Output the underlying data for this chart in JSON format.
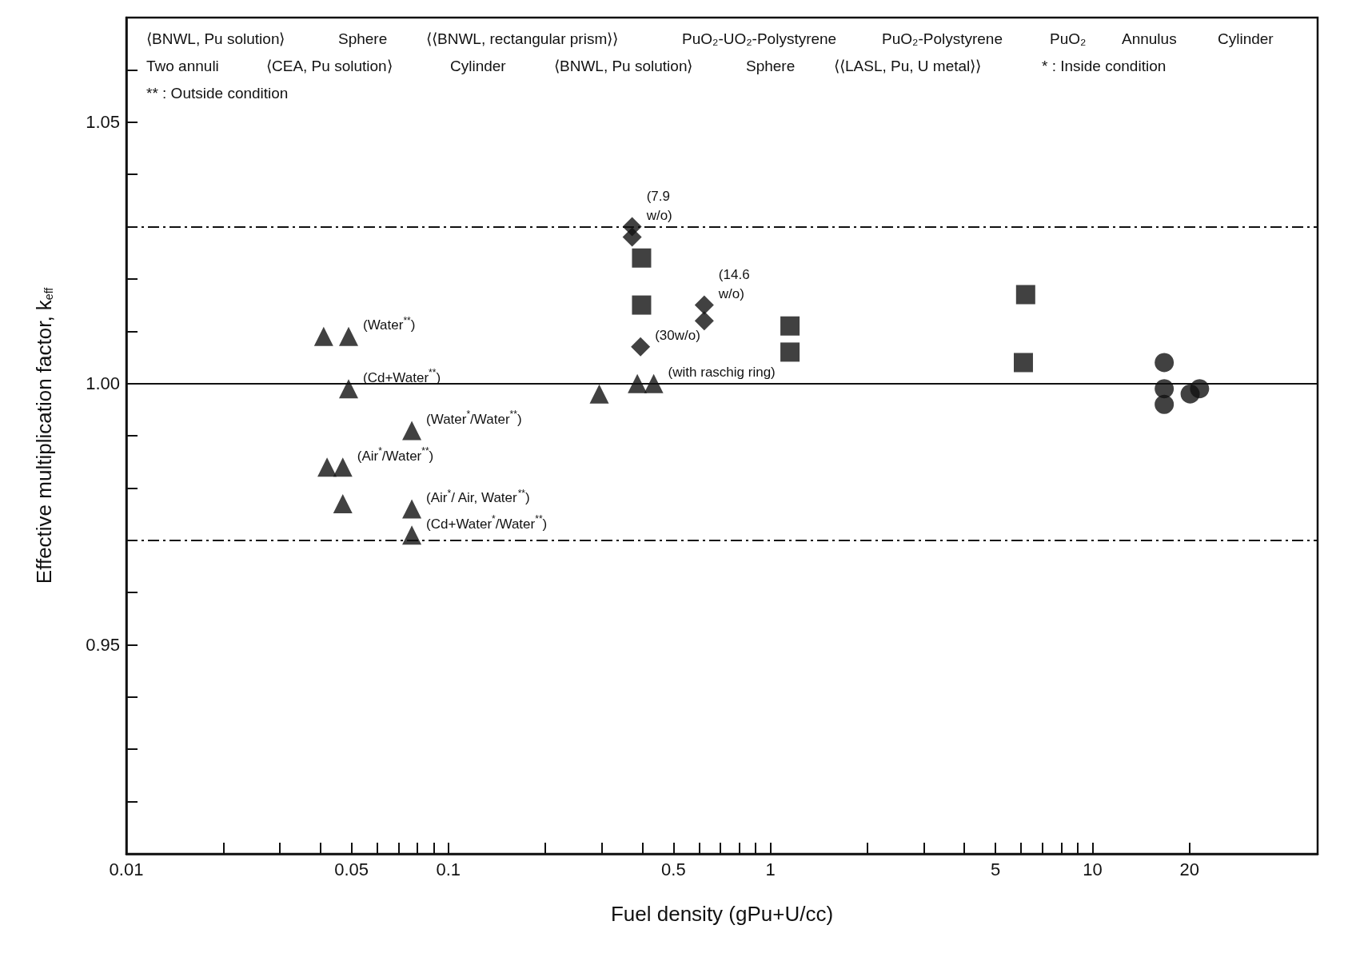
{
  "chart_data": {
    "type": "scatter",
    "xlabel": "Fuel density (gPu+U/cc)",
    "ylabel": "Effective multiplication factor, k$_{eff}$",
    "log": "x",
    "xlim": [
      0.01,
      50
    ],
    "xticks": [
      0.01,
      {
        "value": 0.02,
        "label": null
      },
      {
        "value": 0.03,
        "label": null
      },
      {
        "value": 0.04,
        "label": null
      },
      0.05,
      {
        "value": 0.06,
        "label": null
      },
      {
        "value": 0.07,
        "label": null
      },
      {
        "value": 0.08,
        "label": null
      },
      {
        "value": 0.09,
        "label": null
      },
      0.1,
      {
        "value": 0.2,
        "label": null
      },
      {
        "value": 0.3,
        "label": null
      },
      {
        "value": 0.4,
        "label": null
      },
      0.5,
      {
        "value": 0.6,
        "label": null
      },
      {
        "value": 0.7,
        "label": null
      },
      {
        "value": 0.8,
        "label": null
      },
      {
        "value": 0.9,
        "label": null
      },
      1,
      {
        "value": 2,
        "label": null
      },
      {
        "value": 3,
        "label": null
      },
      {
        "value": 4,
        "label": null
      },
      5,
      {
        "value": 6,
        "label": null
      },
      {
        "value": 7,
        "label": null
      },
      {
        "value": 8,
        "label": null
      },
      {
        "value": 9,
        "label": null
      },
      10,
      20
    ],
    "ylim": [
      0.91,
      1.07
    ],
    "yticks": [
      {
        "value": 0.92,
        "label": null
      },
      {
        "value": 0.93,
        "label": null
      },
      {
        "value": 0.94,
        "label": null
      },
      0.95,
      {
        "value": 0.96,
        "label": null
      },
      {
        "value": 0.97,
        "label": null
      },
      {
        "value": 0.98,
        "label": null
      },
      {
        "value": 0.99,
        "label": null
      },
      {
        "value": 1,
        "label": "1.00"
      },
      {
        "value": 1.01,
        "label": null
      },
      {
        "value": 1.02,
        "label": null
      },
      {
        "value": 1.03,
        "label": null
      },
      {
        "value": 1.04,
        "label": null
      },
      1.05,
      {
        "value": 1.06,
        "label": null
      }
    ],
    "grid": false,
    "series": [
      {
        "color": "#111111",
        "marker": "triangle",
        "x": [
          0.041,
          0.049,
          0.049,
          0.042,
          0.047,
          0.047,
          0.077,
          0.077,
          0.077,
          0.294,
          0.386,
          0.434
        ],
        "values": [
          1.009,
          1.009,
          0.999,
          0.984,
          0.984,
          0.977,
          0.991,
          0.976,
          0.971,
          0.998,
          1.0,
          1.0
        ]
      },
      {
        "color": "#111111",
        "marker": "diamond",
        "x": [
          0.372,
          0.372,
          0.395,
          0.623,
          0.623
        ],
        "values": [
          1.03,
          1.028,
          1.007,
          1.015,
          1.012
        ]
      },
      {
        "color": "#111111",
        "marker": "square",
        "x": [
          0.398,
          0.398,
          1.15,
          1.15,
          6.2,
          6.1
        ],
        "values": [
          1.024,
          1.015,
          1.011,
          1.006,
          1.017,
          1.004
        ]
      },
      {
        "color": "#111111",
        "marker": "circle",
        "x": [
          16.7,
          16.7,
          16.7,
          20.1,
          21.5
        ],
        "values": [
          1.004,
          0.999,
          0.996,
          0.998,
          0.999
        ]
      }
    ],
    "ref_lines": [
      {
        "axis": "y",
        "value": 1.03,
        "line_style": "dashed"
      },
      {
        "axis": "y",
        "value": 1.0,
        "line_style": "solid"
      },
      {
        "axis": "y",
        "value": 0.97,
        "line_style": "dashed"
      }
    ],
    "annotations": [
      {
        "text": "(7.9\nw/o)",
        "x": 0.372,
        "y": 1.03
      },
      {
        "text": "(14.6\nw/o)",
        "x": 0.623,
        "y": 1.015
      },
      {
        "text": "(30w/o)",
        "x": 0.395,
        "y": 1.007
      },
      {
        "text": "(Water$^{**}$)",
        "x": 0.049,
        "y": 1.009
      },
      {
        "text": "(Cd+Water$^{**}$)",
        "x": 0.049,
        "y": 0.999
      },
      {
        "text": "(Water$^{*}$/Water$^{**}$)",
        "x": 0.077,
        "y": 0.991
      },
      {
        "text": "(Air$^{*}$/Water$^{**}$)",
        "x": 0.047,
        "y": 0.984
      },
      {
        "text": "(Air$^{*}$/ Air, Water$^{**}$)",
        "x": 0.077,
        "y": 0.976
      },
      {
        "text": "(Cd+Water$^{*}$/Water$^{**}$)",
        "x": 0.077,
        "y": 0.971
      },
      {
        "text": "(with raschig ring)",
        "x": 0.434,
        "y": 1.0
      },
      "⟨BNWL, Pu solution⟩",
      "Sphere",
      "⟨⟨BNWL, rectangular prism⟩⟩",
      "PuO₂-UO₂-Polystyrene",
      "PuO₂-Polystyrene",
      "PuO₂",
      "Annulus",
      "Cylinder",
      "Two annuli",
      "⟨CEA, Pu solution⟩",
      "Cylinder",
      "⟨BNWL, Pu solution⟩",
      "Sphere",
      "⟨⟨LASL, Pu, U metal⟩⟩",
      "* : Inside condition",
      "** : Outside condition"
    ]
  }
}
